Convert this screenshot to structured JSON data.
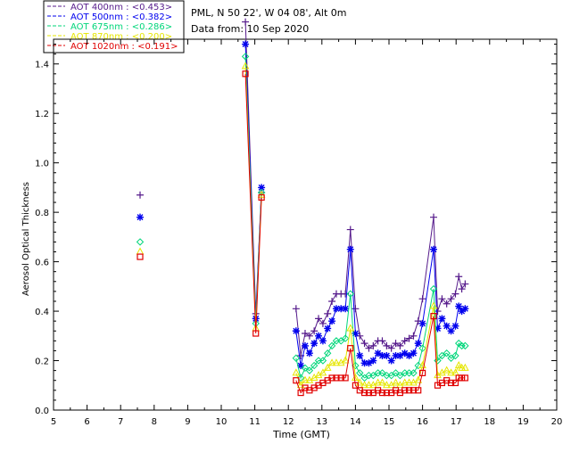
{
  "legend": [
    {
      "label": "AOT  400nm : <0.453>",
      "color": "#551a8b"
    },
    {
      "label": "AOT  500nm : <0.382>",
      "color": "#0000ee"
    },
    {
      "label": "AOT  675nm : <0.286>",
      "color": "#00d67a"
    },
    {
      "label": "AOT  870nm : <0.200>",
      "color": "#e6e600"
    },
    {
      "label": "AOT 1020nm : <0.191>",
      "color": "#e00000"
    }
  ],
  "info": {
    "site": "PML, N 50 22', W 04 08', Alt 0m",
    "date": "Data from: 10 Sep 2020"
  },
  "chart_data": {
    "type": "line",
    "xlabel": "Time (GMT)",
    "ylabel": "Aerosol Optical Thickness",
    "xlim": [
      5,
      20
    ],
    "ylim": [
      0,
      1.5
    ],
    "xticks": [
      "5",
      "6",
      "7",
      "8",
      "9",
      "10",
      "11",
      "12",
      "13",
      "14",
      "15",
      "16",
      "17",
      "18",
      "19",
      "20"
    ],
    "yticks": [
      "0.0",
      "0.2",
      "0.4",
      "0.6",
      "0.8",
      "1.0",
      "1.2",
      "1.4"
    ],
    "grid": false,
    "legend_position": "top-left",
    "series": [
      {
        "name": "AOT  400nm : <0.453>",
        "color": "#551a8b",
        "marker": "plus",
        "x": [
          7.58,
          10.72,
          11.03,
          11.2,
          12.23,
          12.37,
          12.5,
          12.63,
          12.77,
          12.9,
          13.03,
          13.17,
          13.3,
          13.43,
          13.57,
          13.7,
          13.85,
          14.0,
          14.13,
          14.27,
          14.4,
          14.53,
          14.67,
          14.8,
          14.93,
          15.07,
          15.2,
          15.33,
          15.47,
          15.6,
          15.73,
          15.87,
          16.0,
          16.33,
          16.45,
          16.58,
          16.72,
          16.85,
          16.98,
          17.08,
          17.17,
          17.27
        ],
        "y": [
          0.87,
          1.57,
          0.39,
          0.88,
          0.41,
          0.22,
          0.31,
          0.3,
          0.32,
          0.37,
          0.35,
          0.39,
          0.44,
          0.47,
          0.47,
          0.47,
          0.73,
          0.41,
          0.3,
          0.27,
          0.25,
          0.26,
          0.28,
          0.28,
          0.26,
          0.25,
          0.27,
          0.26,
          0.28,
          0.29,
          0.3,
          0.36,
          0.45,
          0.78,
          0.4,
          0.45,
          0.43,
          0.45,
          0.47,
          0.54,
          0.49,
          0.51
        ]
      },
      {
        "name": "AOT  500nm : <0.382>",
        "color": "#0000ee",
        "marker": "star",
        "x": [
          7.58,
          10.72,
          11.03,
          11.2,
          12.23,
          12.37,
          12.5,
          12.63,
          12.77,
          12.9,
          13.03,
          13.17,
          13.3,
          13.43,
          13.57,
          13.7,
          13.85,
          14.0,
          14.13,
          14.27,
          14.4,
          14.53,
          14.67,
          14.8,
          14.93,
          15.07,
          15.2,
          15.33,
          15.47,
          15.6,
          15.73,
          15.87,
          16.0,
          16.33,
          16.45,
          16.58,
          16.72,
          16.85,
          16.98,
          17.08,
          17.17,
          17.27
        ],
        "y": [
          0.78,
          1.48,
          0.37,
          0.9,
          0.32,
          0.18,
          0.26,
          0.23,
          0.27,
          0.3,
          0.28,
          0.33,
          0.36,
          0.41,
          0.41,
          0.41,
          0.65,
          0.31,
          0.22,
          0.19,
          0.19,
          0.2,
          0.23,
          0.22,
          0.22,
          0.2,
          0.22,
          0.22,
          0.23,
          0.22,
          0.23,
          0.27,
          0.35,
          0.65,
          0.33,
          0.37,
          0.34,
          0.32,
          0.34,
          0.42,
          0.4,
          0.41
        ]
      },
      {
        "name": "AOT  675nm : <0.286>",
        "color": "#00d67a",
        "marker": "diamond",
        "x": [
          7.58,
          10.72,
          11.03,
          11.2,
          12.23,
          12.37,
          12.5,
          12.63,
          12.77,
          12.9,
          13.03,
          13.17,
          13.3,
          13.43,
          13.57,
          13.7,
          13.85,
          14.0,
          14.13,
          14.27,
          14.4,
          14.53,
          14.67,
          14.8,
          14.93,
          15.07,
          15.2,
          15.33,
          15.47,
          15.6,
          15.73,
          15.87,
          16.0,
          16.33,
          16.45,
          16.58,
          16.72,
          16.85,
          16.98,
          17.08,
          17.17,
          17.27
        ],
        "y": [
          0.68,
          1.43,
          0.35,
          0.88,
          0.21,
          0.13,
          0.17,
          0.16,
          0.18,
          0.2,
          0.2,
          0.23,
          0.26,
          0.28,
          0.28,
          0.29,
          0.47,
          0.18,
          0.15,
          0.13,
          0.14,
          0.14,
          0.15,
          0.15,
          0.14,
          0.14,
          0.15,
          0.14,
          0.15,
          0.15,
          0.15,
          0.18,
          0.25,
          0.49,
          0.2,
          0.22,
          0.23,
          0.21,
          0.22,
          0.27,
          0.26,
          0.26
        ]
      },
      {
        "name": "AOT  870nm : <0.200>",
        "color": "#e6e600",
        "marker": "triangle",
        "x": [
          7.58,
          10.72,
          11.03,
          11.2,
          12.23,
          12.37,
          12.5,
          12.63,
          12.77,
          12.9,
          13.03,
          13.17,
          13.3,
          13.43,
          13.57,
          13.7,
          13.85,
          14.0,
          14.13,
          14.27,
          14.4,
          14.53,
          14.67,
          14.8,
          14.93,
          15.07,
          15.2,
          15.33,
          15.47,
          15.6,
          15.73,
          15.87,
          16.0,
          16.33,
          16.45,
          16.58,
          16.72,
          16.85,
          16.98,
          17.08,
          17.17,
          17.27
        ],
        "y": [
          0.64,
          1.39,
          0.33,
          0.87,
          0.15,
          0.1,
          0.12,
          0.12,
          0.13,
          0.14,
          0.15,
          0.17,
          0.19,
          0.19,
          0.19,
          0.2,
          0.33,
          0.13,
          0.11,
          0.1,
          0.1,
          0.1,
          0.11,
          0.11,
          0.1,
          0.1,
          0.11,
          0.1,
          0.11,
          0.11,
          0.11,
          0.12,
          0.18,
          0.42,
          0.14,
          0.15,
          0.16,
          0.15,
          0.15,
          0.18,
          0.17,
          0.17
        ]
      },
      {
        "name": "AOT 1020nm : <0.191>",
        "color": "#e00000",
        "marker": "square",
        "x": [
          7.58,
          10.72,
          11.03,
          11.2,
          12.23,
          12.37,
          12.5,
          12.63,
          12.77,
          12.9,
          13.03,
          13.17,
          13.3,
          13.43,
          13.57,
          13.7,
          13.85,
          14.0,
          14.13,
          14.27,
          14.4,
          14.53,
          14.67,
          14.8,
          14.93,
          15.07,
          15.2,
          15.33,
          15.47,
          15.6,
          15.73,
          15.87,
          16.0,
          16.33,
          16.45,
          16.58,
          16.72,
          16.85,
          16.98,
          17.08,
          17.17,
          17.27
        ],
        "y": [
          0.62,
          1.36,
          0.31,
          0.86,
          0.12,
          0.07,
          0.09,
          0.08,
          0.09,
          0.1,
          0.11,
          0.12,
          0.13,
          0.13,
          0.13,
          0.13,
          0.25,
          0.1,
          0.08,
          0.07,
          0.07,
          0.07,
          0.08,
          0.07,
          0.07,
          0.07,
          0.08,
          0.07,
          0.08,
          0.08,
          0.08,
          0.08,
          0.15,
          0.38,
          0.1,
          0.11,
          0.12,
          0.11,
          0.11,
          0.13,
          0.13,
          0.13
        ]
      }
    ]
  }
}
